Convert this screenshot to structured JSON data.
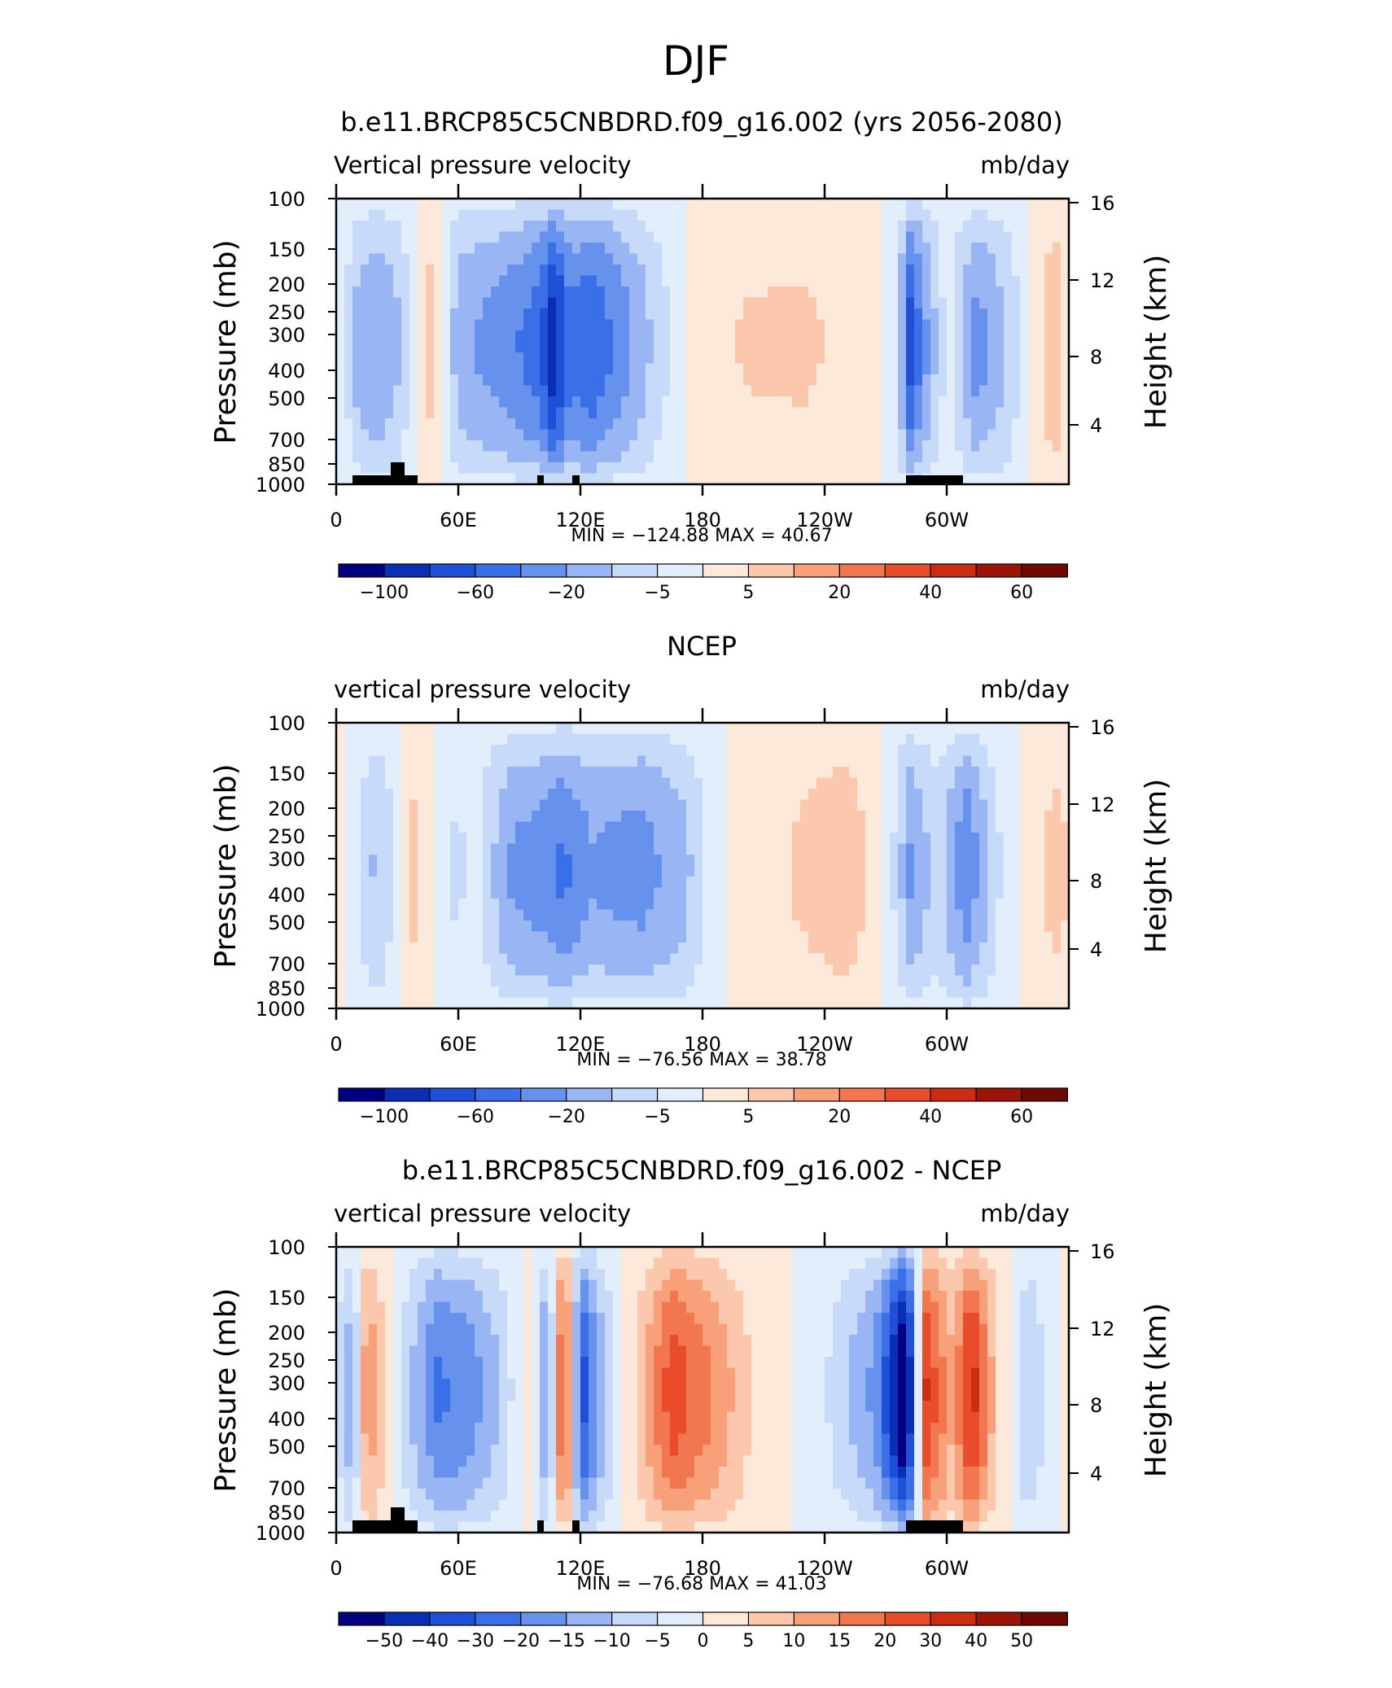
{
  "page_title": "DJF",
  "colors": {
    "seq_scale": [
      "#000080",
      "#0a2fb4",
      "#1f4fd6",
      "#3b6fe8",
      "#6692ee",
      "#9ab5f4",
      "#c8daf9",
      "#e3eefd",
      "#fde9da",
      "#fbc8ad",
      "#f7a07a",
      "#f27650",
      "#e84c2a",
      "#cc2c12",
      "#9c1408",
      "#6e0a03"
    ],
    "diff_scale": [
      "#000080",
      "#0a2fb4",
      "#1f4fd6",
      "#3b6fe8",
      "#6692ee",
      "#9ab5f4",
      "#c8daf9",
      "#e3eefd",
      "#fde9da",
      "#fbc8ad",
      "#f7a07a",
      "#f27650",
      "#e84c2a",
      "#cc2c12",
      "#9c1408",
      "#6e0a03"
    ],
    "land": "#000000"
  },
  "chart_data": [
    {
      "type": "heatmap",
      "title": "b.e11.BRCP85C5CNBDRD.f09_g16.002 (yrs 2056-2080)",
      "left_label": "Vertical pressure velocity",
      "right_label": "mb/day",
      "ylabel": "Pressure (mb)",
      "ylabel_right": "Height (km)",
      "x_ticks": [
        {
          "lon": 0,
          "label": "0"
        },
        {
          "lon": 60,
          "label": "60E"
        },
        {
          "lon": 120,
          "label": "120E"
        },
        {
          "lon": 180,
          "label": "180"
        },
        {
          "lon": 240,
          "label": "120W"
        },
        {
          "lon": 300,
          "label": "60W"
        }
      ],
      "xlim": [
        0,
        360
      ],
      "y_ticks": [
        "100",
        "150",
        "200",
        "250",
        "300",
        "400",
        "500",
        "700",
        "850",
        "1000"
      ],
      "height_ticks": [
        "16",
        "12",
        "8",
        "4"
      ],
      "ylim": [
        1000,
        100
      ],
      "min_max_text": "MIN = −124.88   MAX =  40.67",
      "colorbar_labels": [
        "−100",
        "−60",
        "−20",
        "−5",
        "5",
        "20",
        "40",
        "60"
      ],
      "lon_profile": [
        {
          "lon": 0,
          "v": 4
        },
        {
          "lon": 10,
          "v": -30
        },
        {
          "lon": 20,
          "v": -40
        },
        {
          "lon": 30,
          "v": -28
        },
        {
          "lon": 38,
          "v": -8
        },
        {
          "lon": 45,
          "v": 20
        },
        {
          "lon": 52,
          "v": -3
        },
        {
          "lon": 60,
          "v": -35
        },
        {
          "lon": 80,
          "v": -45
        },
        {
          "lon": 100,
          "v": -60
        },
        {
          "lon": 107,
          "v": -90
        },
        {
          "lon": 115,
          "v": -55
        },
        {
          "lon": 125,
          "v": -65
        },
        {
          "lon": 145,
          "v": -40
        },
        {
          "lon": 165,
          "v": -10
        },
        {
          "lon": 178,
          "v": 6
        },
        {
          "lon": 200,
          "v": 14
        },
        {
          "lon": 230,
          "v": 15
        },
        {
          "lon": 262,
          "v": 8
        },
        {
          "lon": 275,
          "v": -10
        },
        {
          "lon": 282,
          "v": -70
        },
        {
          "lon": 290,
          "v": -40
        },
        {
          "lon": 300,
          "v": -8
        },
        {
          "lon": 315,
          "v": -45
        },
        {
          "lon": 330,
          "v": -25
        },
        {
          "lon": 345,
          "v": 8
        },
        {
          "lon": 353,
          "v": 25
        },
        {
          "lon": 360,
          "v": 4
        }
      ]
    },
    {
      "type": "heatmap",
      "title": "NCEP",
      "left_label": "vertical pressure velocity",
      "right_label": "mb/day",
      "ylabel": "Pressure (mb)",
      "ylabel_right": "Height (km)",
      "x_ticks": [
        {
          "lon": 0,
          "label": "0"
        },
        {
          "lon": 60,
          "label": "60E"
        },
        {
          "lon": 120,
          "label": "120E"
        },
        {
          "lon": 180,
          "label": "180"
        },
        {
          "lon": 240,
          "label": "120W"
        },
        {
          "lon": 300,
          "label": "60W"
        }
      ],
      "xlim": [
        0,
        360
      ],
      "y_ticks": [
        "100",
        "150",
        "200",
        "250",
        "300",
        "400",
        "500",
        "700",
        "850",
        "1000"
      ],
      "height_ticks": [
        "16",
        "12",
        "8",
        "4"
      ],
      "ylim": [
        1000,
        100
      ],
      "min_max_text": "MIN = −76.56   MAX =  38.78",
      "colorbar_labels": [
        "−100",
        "−60",
        "−20",
        "−5",
        "5",
        "20",
        "40",
        "60"
      ],
      "lon_profile": [
        {
          "lon": 0,
          "v": 12
        },
        {
          "lon": 12,
          "v": -15
        },
        {
          "lon": 20,
          "v": -30
        },
        {
          "lon": 28,
          "v": -12
        },
        {
          "lon": 36,
          "v": 18
        },
        {
          "lon": 45,
          "v": 8
        },
        {
          "lon": 55,
          "v": -15
        },
        {
          "lon": 70,
          "v": -12
        },
        {
          "lon": 85,
          "v": -40
        },
        {
          "lon": 100,
          "v": -45
        },
        {
          "lon": 112,
          "v": -55
        },
        {
          "lon": 125,
          "v": -40
        },
        {
          "lon": 150,
          "v": -45
        },
        {
          "lon": 172,
          "v": -30
        },
        {
          "lon": 185,
          "v": -5
        },
        {
          "lon": 200,
          "v": 6
        },
        {
          "lon": 225,
          "v": 14
        },
        {
          "lon": 250,
          "v": 22
        },
        {
          "lon": 268,
          "v": 6
        },
        {
          "lon": 282,
          "v": -40
        },
        {
          "lon": 295,
          "v": -20
        },
        {
          "lon": 310,
          "v": -50
        },
        {
          "lon": 325,
          "v": -15
        },
        {
          "lon": 345,
          "v": 12
        },
        {
          "lon": 355,
          "v": 18
        },
        {
          "lon": 360,
          "v": 12
        }
      ]
    },
    {
      "type": "heatmap",
      "title": "b.e11.BRCP85C5CNBDRD.f09_g16.002 - NCEP",
      "left_label": "vertical pressure velocity",
      "right_label": "mb/day",
      "ylabel": "Pressure (mb)",
      "ylabel_right": "Height (km)",
      "x_ticks": [
        {
          "lon": 0,
          "label": "0"
        },
        {
          "lon": 60,
          "label": "60E"
        },
        {
          "lon": 120,
          "label": "120E"
        },
        {
          "lon": 180,
          "label": "180"
        },
        {
          "lon": 240,
          "label": "120W"
        },
        {
          "lon": 300,
          "label": "60W"
        }
      ],
      "xlim": [
        0,
        360
      ],
      "y_ticks": [
        "100",
        "150",
        "200",
        "250",
        "300",
        "400",
        "500",
        "700",
        "850",
        "1000"
      ],
      "height_ticks": [
        "16",
        "12",
        "8",
        "4"
      ],
      "ylim": [
        1000,
        100
      ],
      "min_max_text": "MIN = −76.68   MAX =  41.03",
      "colorbar_labels": [
        "−50",
        "−40",
        "−30",
        "−20",
        "−15",
        "−10",
        "−5",
        "0",
        "5",
        "10",
        "15",
        "20",
        "30",
        "40",
        "50"
      ],
      "lon_profile": [
        {
          "lon": 0,
          "v": -5
        },
        {
          "lon": 8,
          "v": -18
        },
        {
          "lon": 15,
          "v": 18
        },
        {
          "lon": 25,
          "v": 5
        },
        {
          "lon": 35,
          "v": -10
        },
        {
          "lon": 50,
          "v": -25
        },
        {
          "lon": 65,
          "v": -22
        },
        {
          "lon": 80,
          "v": -12
        },
        {
          "lon": 95,
          "v": 3
        },
        {
          "lon": 104,
          "v": -22
        },
        {
          "lon": 112,
          "v": 35
        },
        {
          "lon": 120,
          "v": -35
        },
        {
          "lon": 132,
          "v": -12
        },
        {
          "lon": 150,
          "v": 10
        },
        {
          "lon": 165,
          "v": 28
        },
        {
          "lon": 185,
          "v": 18
        },
        {
          "lon": 205,
          "v": 5
        },
        {
          "lon": 240,
          "v": -5
        },
        {
          "lon": 265,
          "v": -20
        },
        {
          "lon": 280,
          "v": -55
        },
        {
          "lon": 290,
          "v": 30
        },
        {
          "lon": 303,
          "v": 12
        },
        {
          "lon": 312,
          "v": 35
        },
        {
          "lon": 325,
          "v": 6
        },
        {
          "lon": 340,
          "v": -12
        },
        {
          "lon": 360,
          "v": 4
        }
      ]
    }
  ]
}
